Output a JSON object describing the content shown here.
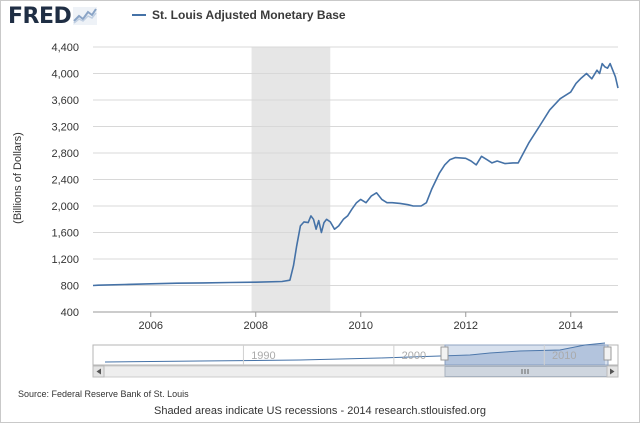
{
  "header": {
    "logo_text": "FRED",
    "logo_icon": "trend-line-icon"
  },
  "colors": {
    "series": "#4572a7",
    "recession": "#e6e6e6",
    "grid": "#d8d8d8",
    "logo": "#1f2e44",
    "navigator_fill": "#a9bcd9"
  },
  "chart_data": {
    "type": "line",
    "title": "",
    "xlabel": "",
    "ylabel": "(Billions of Dollars)",
    "xlim": [
      2004.9,
      2014.9
    ],
    "ylim": [
      400,
      4400
    ],
    "x_ticks": [
      2006,
      2008,
      2010,
      2012,
      2014
    ],
    "y_ticks": [
      400,
      800,
      1200,
      1600,
      2000,
      2400,
      2800,
      3200,
      3600,
      4000,
      4400
    ],
    "grid": true,
    "legend_position": "top-left",
    "recessions": [
      [
        2007.92,
        2009.42
      ]
    ],
    "series": [
      {
        "name": "St. Louis Adjusted Monetary Base",
        "x": [
          2004.9,
          2005.0,
          2005.5,
          2006.0,
          2006.5,
          2007.0,
          2007.5,
          2008.0,
          2008.5,
          2008.65,
          2008.72,
          2008.78,
          2008.85,
          2008.92,
          2009.0,
          2009.05,
          2009.1,
          2009.15,
          2009.2,
          2009.25,
          2009.3,
          2009.35,
          2009.42,
          2009.5,
          2009.58,
          2009.67,
          2009.75,
          2009.83,
          2009.92,
          2010.0,
          2010.1,
          2010.2,
          2010.3,
          2010.4,
          2010.5,
          2010.6,
          2010.75,
          2010.9,
          2011.0,
          2011.15,
          2011.25,
          2011.35,
          2011.5,
          2011.6,
          2011.7,
          2011.8,
          2012.0,
          2012.1,
          2012.2,
          2012.3,
          2012.4,
          2012.5,
          2012.6,
          2012.75,
          2012.9,
          2013.0,
          2013.2,
          2013.4,
          2013.6,
          2013.8,
          2014.0,
          2014.1,
          2014.2,
          2014.3,
          2014.4,
          2014.5,
          2014.55,
          2014.6,
          2014.65,
          2014.7,
          2014.75,
          2014.85,
          2014.9
        ],
        "values": [
          800,
          805,
          815,
          825,
          835,
          840,
          845,
          850,
          860,
          880,
          1100,
          1400,
          1700,
          1760,
          1750,
          1850,
          1800,
          1650,
          1780,
          1600,
          1750,
          1800,
          1760,
          1650,
          1700,
          1800,
          1850,
          1950,
          2050,
          2100,
          2050,
          2150,
          2200,
          2100,
          2050,
          2050,
          2040,
          2020,
          2000,
          2000,
          2050,
          2250,
          2500,
          2620,
          2700,
          2730,
          2720,
          2680,
          2620,
          2750,
          2700,
          2650,
          2680,
          2640,
          2650,
          2650,
          2950,
          3200,
          3450,
          3620,
          3720,
          3850,
          3930,
          4000,
          3920,
          4050,
          4000,
          4150,
          4100,
          4080,
          4150,
          3950,
          3780
        ]
      }
    ],
    "navigator": {
      "ticks": [
        1990,
        2000,
        2010
      ]
    }
  },
  "footer": {
    "source": "Source: Federal Reserve Bank of St. Louis",
    "note": "Shaded areas indicate US recessions - 2014 research.stlouisfed.org"
  }
}
